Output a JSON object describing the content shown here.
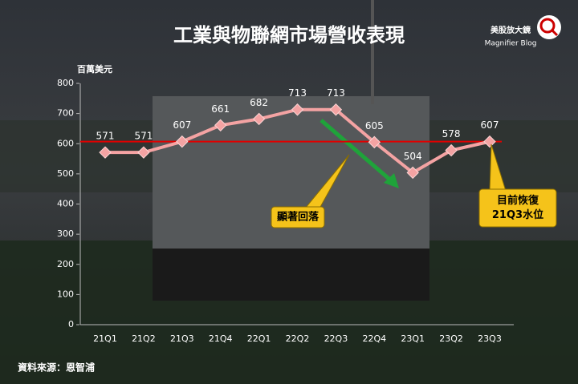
{
  "chart_data": {
    "type": "line",
    "title": "工業與物聯網市場營收表現",
    "y_axis_label": "百萬美元",
    "source": "資料來源：恩智浦",
    "logo": {
      "name": "美股放大鏡",
      "subtitle": "Magnifier Blog"
    },
    "categories": [
      "21Q1",
      "21Q2",
      "21Q3",
      "21Q4",
      "22Q1",
      "22Q2",
      "22Q3",
      "22Q4",
      "23Q1",
      "23Q2",
      "23Q3"
    ],
    "values": [
      571,
      571,
      607,
      661,
      682,
      713,
      713,
      605,
      504,
      578,
      607
    ],
    "color": "#f4a3a3",
    "reference_line": {
      "value": 607,
      "color": "#e00000"
    },
    "annotations": [
      {
        "lines": [
          "顯著回落"
        ]
      },
      {
        "lines": [
          "目前恢復",
          "21Q3水位"
        ]
      }
    ],
    "ylim": [
      0,
      800
    ],
    "yticks": [
      0,
      100,
      200,
      300,
      400,
      500,
      600,
      700,
      800
    ]
  }
}
